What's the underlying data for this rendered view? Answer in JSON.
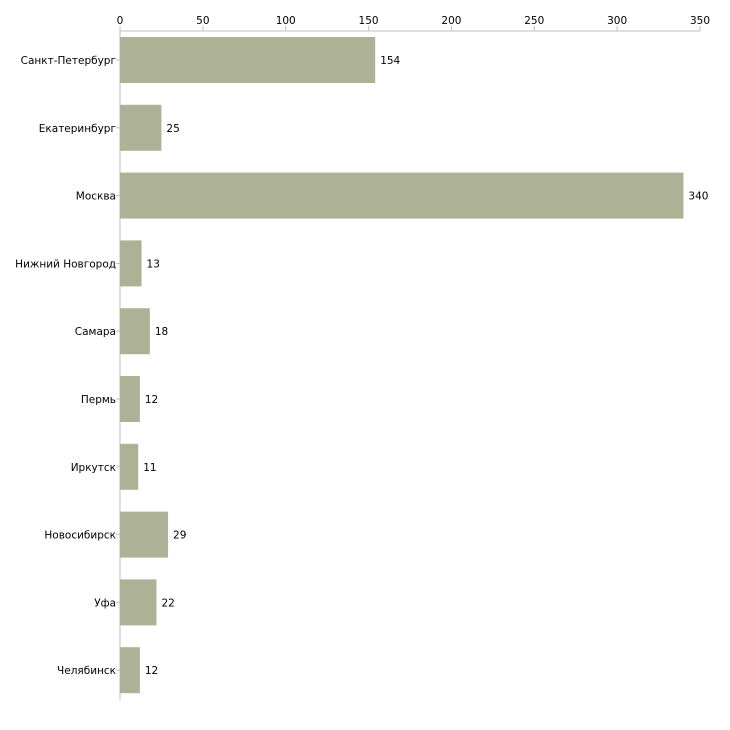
{
  "chart_data": {
    "type": "bar",
    "orientation": "horizontal",
    "title": "",
    "xlabel": "",
    "ylabel": "",
    "xlim": [
      0,
      350
    ],
    "x_ticks": [
      0,
      50,
      100,
      150,
      200,
      250,
      300,
      350
    ],
    "grid": false,
    "bar_color": "#adb296",
    "categories": [
      "Санкт-Петербург",
      "Екатеринбург",
      "Москва",
      "Нижний Новгород",
      "Самара",
      "Пермь",
      "Иркутск",
      "Новосибирск",
      "Уфа",
      "Челябинск"
    ],
    "values": [
      154,
      25,
      340,
      13,
      18,
      12,
      11,
      29,
      22,
      12
    ]
  }
}
